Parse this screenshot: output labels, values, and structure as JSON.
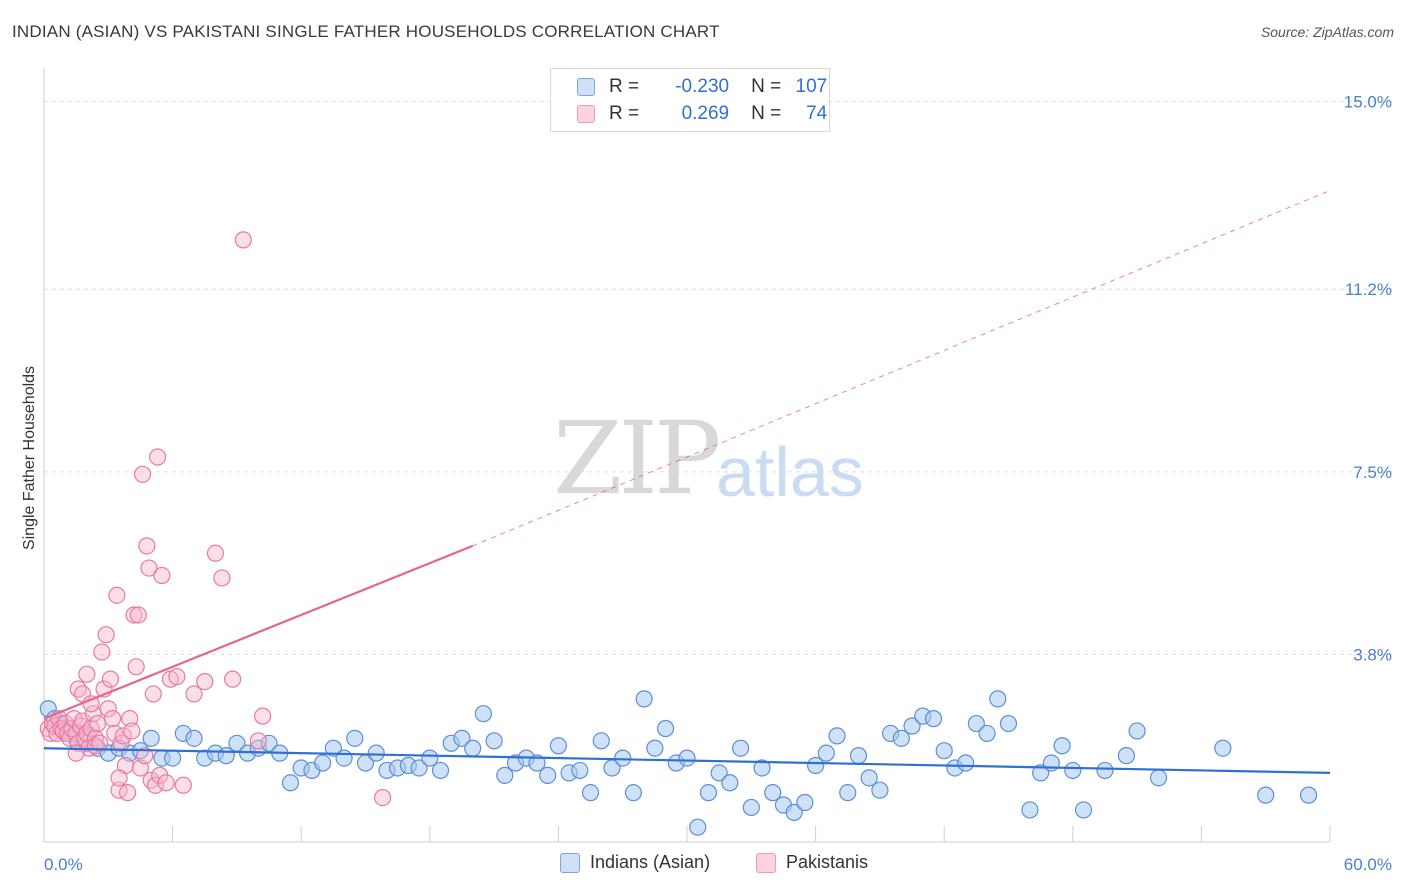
{
  "title": "INDIAN (ASIAN) VS PAKISTANI SINGLE FATHER HOUSEHOLDS CORRELATION CHART",
  "source": "Source: ZipAtlas.com",
  "watermark": {
    "zip": "ZIP",
    "atlas": "atlas"
  },
  "legend": {
    "rows": [
      {
        "r_key": "R =",
        "r_value": "-0.230",
        "n_key": "N =",
        "n_value": "107",
        "color": "#a8c8f0"
      },
      {
        "r_key": "R =",
        "r_value": "0.269",
        "n_key": "N =",
        "n_value": "74",
        "color": "#f7b8cc"
      }
    ]
  },
  "bottom_legend": [
    "Indians (Asian)",
    "Pakistanis"
  ],
  "colors": {
    "blue_fill": "#a8c8f0",
    "blue_stroke": "#5b8fd6",
    "blue_line": "#2f6fd6",
    "pink_fill": "#f7b8cc",
    "pink_stroke": "#e87aa0",
    "pink_line": "#e8648c",
    "grid": "#dcdcdc",
    "axis_label": "#4a7fc9"
  },
  "chart_data": {
    "type": "scatter",
    "title": "INDIAN (ASIAN) VS PAKISTANI SINGLE FATHER HOUSEHOLDS CORRELATION CHART",
    "xlabel": "",
    "ylabel": "Single Father Households",
    "xlim": [
      0,
      60
    ],
    "ylim": [
      0,
      15.5
    ],
    "x_tick_labels": [
      "0.0%",
      "60.0%"
    ],
    "y_ticks": [
      3.8,
      7.5,
      11.2,
      15.0
    ],
    "y_tick_labels": [
      "3.8%",
      "7.5%",
      "11.2%",
      "15.0%"
    ],
    "series": [
      {
        "name": "Indians (Asian)",
        "r": -0.23,
        "n": 107,
        "trend": {
          "x": [
            0,
            60
          ],
          "y": [
            1.9,
            1.4
          ]
        },
        "points": [
          [
            0.2,
            2.7
          ],
          [
            0.5,
            2.5
          ],
          [
            0.8,
            2.4
          ],
          [
            1.0,
            2.2
          ],
          [
            1.2,
            2.3
          ],
          [
            1.5,
            2.1
          ],
          [
            1.8,
            2.2
          ],
          [
            2.0,
            2.0
          ],
          [
            2.5,
            1.9
          ],
          [
            3.0,
            1.8
          ],
          [
            3.5,
            1.9
          ],
          [
            4.0,
            1.8
          ],
          [
            4.5,
            1.85
          ],
          [
            5.0,
            2.1
          ],
          [
            5.5,
            1.7
          ],
          [
            6.0,
            1.7
          ],
          [
            6.5,
            2.2
          ],
          [
            7.0,
            2.1
          ],
          [
            7.5,
            1.7
          ],
          [
            8.0,
            1.8
          ],
          [
            8.5,
            1.75
          ],
          [
            9.0,
            2.0
          ],
          [
            9.5,
            1.8
          ],
          [
            10.0,
            1.9
          ],
          [
            10.5,
            2.0
          ],
          [
            11.0,
            1.8
          ],
          [
            11.5,
            1.2
          ],
          [
            12.0,
            1.5
          ],
          [
            12.5,
            1.45
          ],
          [
            13.0,
            1.6
          ],
          [
            13.5,
            1.9
          ],
          [
            14.0,
            1.7
          ],
          [
            14.5,
            2.1
          ],
          [
            15.0,
            1.6
          ],
          [
            15.5,
            1.8
          ],
          [
            16.0,
            1.45
          ],
          [
            16.5,
            1.5
          ],
          [
            17.0,
            1.55
          ],
          [
            17.5,
            1.5
          ],
          [
            18.0,
            1.7
          ],
          [
            18.5,
            1.45
          ],
          [
            19.0,
            2.0
          ],
          [
            19.5,
            2.1
          ],
          [
            20.0,
            1.9
          ],
          [
            20.5,
            2.6
          ],
          [
            21.0,
            2.05
          ],
          [
            21.5,
            1.35
          ],
          [
            22.0,
            1.6
          ],
          [
            22.5,
            1.7
          ],
          [
            23.0,
            1.6
          ],
          [
            23.5,
            1.35
          ],
          [
            24.0,
            1.95
          ],
          [
            24.5,
            1.4
          ],
          [
            25.0,
            1.45
          ],
          [
            25.5,
            1.0
          ],
          [
            26.0,
            2.05
          ],
          [
            26.5,
            1.5
          ],
          [
            27.0,
            1.7
          ],
          [
            27.5,
            1.0
          ],
          [
            28.0,
            2.9
          ],
          [
            28.5,
            1.9
          ],
          [
            29.0,
            2.3
          ],
          [
            29.5,
            1.6
          ],
          [
            30.0,
            1.7
          ],
          [
            30.5,
            0.3
          ],
          [
            31.0,
            1.0
          ],
          [
            31.5,
            1.4
          ],
          [
            32.0,
            1.2
          ],
          [
            32.5,
            1.9
          ],
          [
            33.0,
            0.7
          ],
          [
            33.5,
            1.5
          ],
          [
            34.0,
            1.0
          ],
          [
            34.5,
            0.75
          ],
          [
            35.0,
            0.6
          ],
          [
            35.5,
            0.8
          ],
          [
            36.0,
            1.55
          ],
          [
            36.5,
            1.8
          ],
          [
            37.0,
            2.15
          ],
          [
            37.5,
            1.0
          ],
          [
            38.0,
            1.75
          ],
          [
            38.5,
            1.3
          ],
          [
            39.0,
            1.05
          ],
          [
            39.5,
            2.2
          ],
          [
            40.0,
            2.1
          ],
          [
            40.5,
            2.35
          ],
          [
            41.0,
            2.55
          ],
          [
            41.5,
            2.5
          ],
          [
            42.0,
            1.85
          ],
          [
            42.5,
            1.5
          ],
          [
            43.0,
            1.6
          ],
          [
            43.5,
            2.4
          ],
          [
            44.0,
            2.2
          ],
          [
            44.5,
            2.9
          ],
          [
            45.0,
            2.4
          ],
          [
            46.0,
            0.65
          ],
          [
            46.5,
            1.4
          ],
          [
            47.0,
            1.6
          ],
          [
            47.5,
            1.95
          ],
          [
            48.0,
            1.45
          ],
          [
            48.5,
            0.65
          ],
          [
            49.5,
            1.45
          ],
          [
            50.5,
            1.75
          ],
          [
            51.0,
            2.25
          ],
          [
            52.0,
            1.3
          ],
          [
            55.0,
            1.9
          ],
          [
            57.0,
            0.95
          ],
          [
            59.0,
            0.95
          ]
        ]
      },
      {
        "name": "Pakistanis",
        "r": 0.269,
        "n": 74,
        "trend": {
          "x": [
            0,
            20
          ],
          "y": [
            2.5,
            6.0
          ]
        },
        "trend_dashed": {
          "x": [
            20,
            60
          ],
          "y": [
            6.0,
            13.2
          ]
        },
        "points": [
          [
            0.2,
            2.3
          ],
          [
            0.3,
            2.2
          ],
          [
            0.4,
            2.4
          ],
          [
            0.5,
            2.35
          ],
          [
            0.6,
            2.2
          ],
          [
            0.7,
            2.5
          ],
          [
            0.8,
            2.3
          ],
          [
            0.9,
            2.25
          ],
          [
            1.0,
            2.4
          ],
          [
            1.1,
            2.2
          ],
          [
            1.2,
            2.1
          ],
          [
            1.3,
            2.3
          ],
          [
            1.4,
            2.5
          ],
          [
            1.5,
            2.2
          ],
          [
            1.6,
            2.0
          ],
          [
            1.7,
            2.35
          ],
          [
            1.8,
            2.45
          ],
          [
            1.9,
            2.1
          ],
          [
            2.0,
            2.2
          ],
          [
            2.1,
            1.9
          ],
          [
            2.2,
            2.3
          ],
          [
            1.5,
            1.8
          ],
          [
            2.3,
            2.6
          ],
          [
            2.4,
            2.1
          ],
          [
            1.6,
            3.1
          ],
          [
            1.8,
            3.0
          ],
          [
            2.0,
            3.4
          ],
          [
            2.2,
            2.8
          ],
          [
            2.4,
            1.95
          ],
          [
            2.5,
            2.4
          ],
          [
            2.6,
            2.0
          ],
          [
            2.8,
            3.1
          ],
          [
            2.7,
            3.85
          ],
          [
            2.9,
            4.2
          ],
          [
            3.0,
            2.7
          ],
          [
            3.1,
            3.3
          ],
          [
            3.2,
            2.5
          ],
          [
            3.3,
            2.2
          ],
          [
            3.4,
            5.0
          ],
          [
            3.5,
            1.05
          ],
          [
            3.6,
            2.0
          ],
          [
            3.7,
            2.15
          ],
          [
            3.8,
            1.55
          ],
          [
            3.9,
            1.0
          ],
          [
            4.0,
            2.5
          ],
          [
            4.1,
            2.25
          ],
          [
            3.5,
            1.3
          ],
          [
            4.2,
            4.6
          ],
          [
            4.3,
            3.55
          ],
          [
            4.4,
            4.6
          ],
          [
            4.5,
            1.5
          ],
          [
            4.6,
            7.45
          ],
          [
            4.7,
            1.75
          ],
          [
            4.8,
            6.0
          ],
          [
            4.9,
            5.55
          ],
          [
            5.0,
            1.25
          ],
          [
            5.1,
            3.0
          ],
          [
            5.2,
            1.15
          ],
          [
            5.3,
            7.8
          ],
          [
            5.4,
            1.35
          ],
          [
            5.5,
            5.4
          ],
          [
            5.7,
            1.2
          ],
          [
            5.9,
            3.3
          ],
          [
            6.2,
            3.35
          ],
          [
            6.5,
            1.15
          ],
          [
            7.0,
            3.0
          ],
          [
            7.5,
            3.25
          ],
          [
            8.0,
            5.85
          ],
          [
            8.3,
            5.35
          ],
          [
            8.8,
            3.3
          ],
          [
            9.3,
            12.2
          ],
          [
            10.0,
            2.05
          ],
          [
            10.2,
            2.55
          ],
          [
            15.8,
            0.9
          ]
        ]
      }
    ]
  }
}
